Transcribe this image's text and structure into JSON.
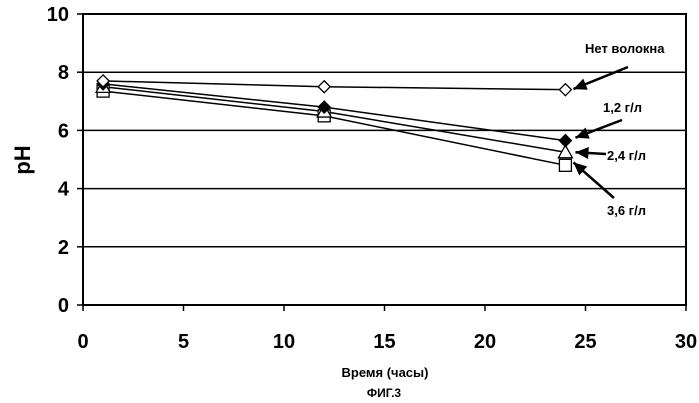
{
  "chart_data": {
    "type": "line",
    "title": "",
    "xlabel": "Время (часы)",
    "ylabel": "pH",
    "figure_caption": "ФИГ.3",
    "xlim": [
      0,
      30
    ],
    "ylim": [
      0,
      10
    ],
    "x_ticks": [
      0,
      5,
      10,
      15,
      20,
      25,
      30
    ],
    "y_ticks": [
      0,
      2,
      4,
      6,
      8,
      10
    ],
    "grid": "horizontal",
    "legend": "callout labels on right",
    "series": [
      {
        "name": "Нет волокна",
        "marker": "open-diamond",
        "x": [
          1,
          12,
          24
        ],
        "y": [
          7.7,
          7.5,
          7.4
        ]
      },
      {
        "name": "1,2 г/л",
        "marker": "filled-diamond",
        "x": [
          1,
          12,
          24
        ],
        "y": [
          7.6,
          6.8,
          5.65
        ]
      },
      {
        "name": "2,4 г/л",
        "marker": "open-triangle",
        "x": [
          1,
          12,
          24
        ],
        "y": [
          7.5,
          6.65,
          5.25
        ]
      },
      {
        "name": "3,6 г/л",
        "marker": "open-square",
        "x": [
          1,
          12,
          24
        ],
        "y": [
          7.35,
          6.5,
          4.8
        ]
      }
    ]
  }
}
